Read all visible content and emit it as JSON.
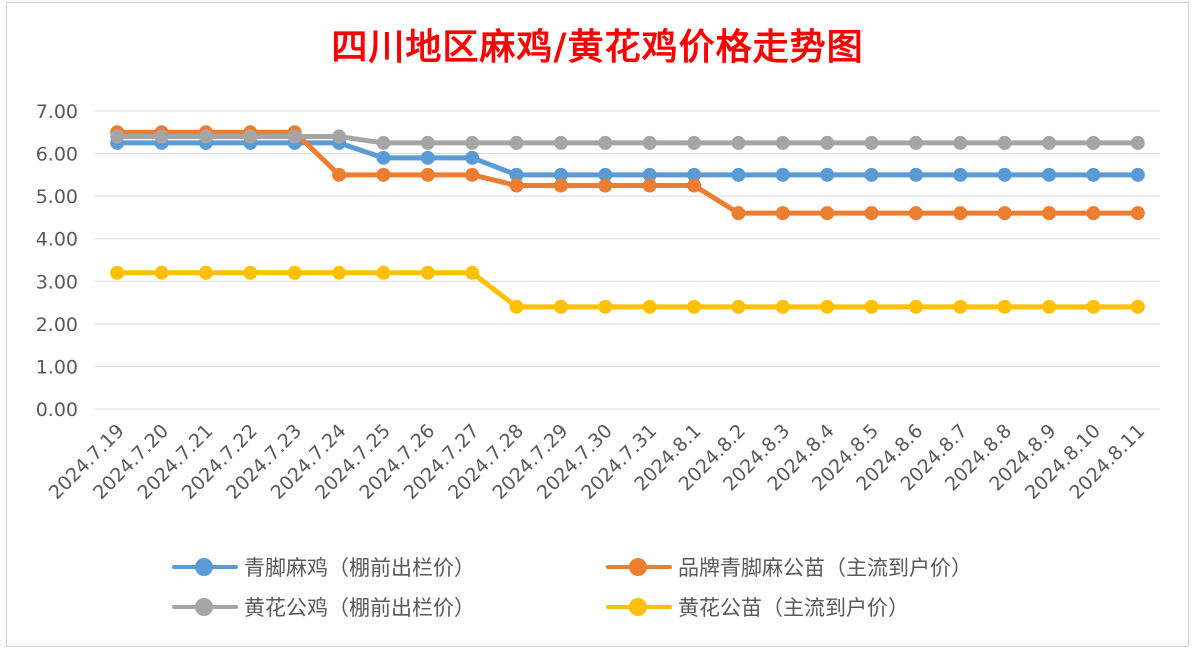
{
  "chart_data": {
    "type": "line",
    "title": "四川地区麻鸡/黄花鸡价格走势图",
    "categories": [
      "2024.7.19",
      "2024.7.20",
      "2024.7.21",
      "2024.7.22",
      "2024.7.23",
      "2024.7.24",
      "2024.7.25",
      "2024.7.26",
      "2024.7.27",
      "2024.7.28",
      "2024.7.29",
      "2024.7.30",
      "2024.7.31",
      "2024.8.1",
      "2024.8.2",
      "2024.8.3",
      "2024.8.4",
      "2024.8.5",
      "2024.8.6",
      "2024.8.7",
      "2024.8.8",
      "2024.8.9",
      "2024.8.10",
      "2024.8.11"
    ],
    "ylim": [
      0,
      7
    ],
    "yticks": [
      "0.00",
      "1.00",
      "2.00",
      "3.00",
      "4.00",
      "5.00",
      "6.00",
      "7.00"
    ],
    "grid": true,
    "legend_position": "bottom",
    "series": [
      {
        "name": "青脚麻鸡（棚前出栏价）",
        "color": "#5b9bd5",
        "values": [
          6.25,
          6.25,
          6.25,
          6.25,
          6.25,
          6.25,
          5.9,
          5.9,
          5.9,
          5.5,
          5.5,
          5.5,
          5.5,
          5.5,
          5.5,
          5.5,
          5.5,
          5.5,
          5.5,
          5.5,
          5.5,
          5.5,
          5.5,
          5.5
        ]
      },
      {
        "name": "品牌青脚麻公苗（主流到户价）",
        "color": "#ed7d31",
        "values": [
          6.5,
          6.5,
          6.5,
          6.5,
          6.5,
          5.5,
          5.5,
          5.5,
          5.5,
          5.25,
          5.25,
          5.25,
          5.25,
          5.25,
          4.6,
          4.6,
          4.6,
          4.6,
          4.6,
          4.6,
          4.6,
          4.6,
          4.6,
          4.6
        ]
      },
      {
        "name": "黄花公鸡（棚前出栏价）",
        "color": "#a5a5a5",
        "values": [
          6.4,
          6.4,
          6.4,
          6.4,
          6.4,
          6.4,
          6.25,
          6.25,
          6.25,
          6.25,
          6.25,
          6.25,
          6.25,
          6.25,
          6.25,
          6.25,
          6.25,
          6.25,
          6.25,
          6.25,
          6.25,
          6.25,
          6.25,
          6.25
        ]
      },
      {
        "name": "黄花公苗（主流到户价）",
        "color": "#ffc000",
        "values": [
          3.2,
          3.2,
          3.2,
          3.2,
          3.2,
          3.2,
          3.2,
          3.2,
          3.2,
          2.4,
          2.4,
          2.4,
          2.4,
          2.4,
          2.4,
          2.4,
          2.4,
          2.4,
          2.4,
          2.4,
          2.4,
          2.4,
          2.4,
          2.4
        ]
      }
    ]
  }
}
